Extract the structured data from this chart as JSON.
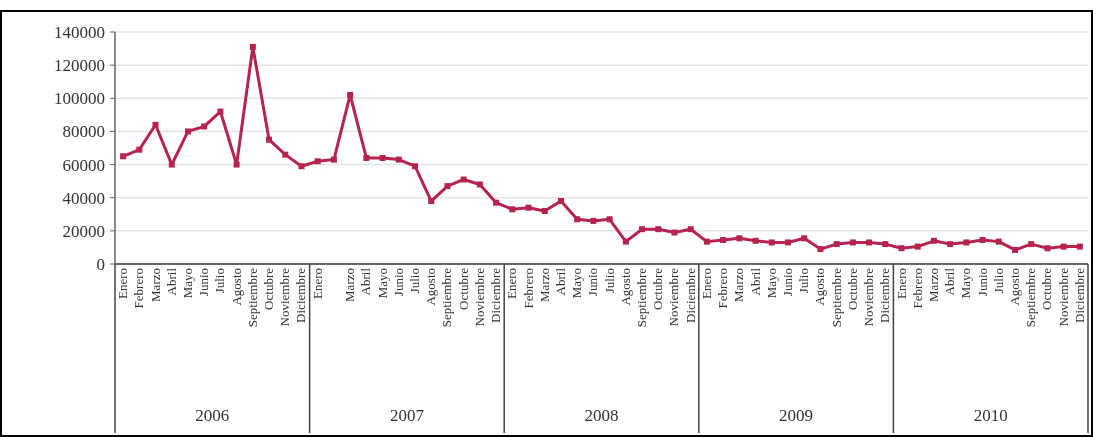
{
  "chart_data": {
    "type": "line",
    "categories": [
      "Enero",
      "Febrero",
      "Marzo",
      "Abril",
      "Mayo",
      "Junio",
      "Julio",
      "Agosto",
      "Septiembre",
      "Octubre",
      "Noviembre",
      "Diciembre",
      "Enero",
      null,
      "Marzo",
      "Abril",
      "Mayo",
      "Junio",
      "Julio",
      "Agosto",
      "Septiembre",
      "Octubre",
      "Noviembre",
      "Diciembre",
      "Enero",
      "Febrero",
      "Marzo",
      "Abril",
      "Mayo",
      "Junio",
      "Julio",
      "Agosto",
      "Septiembre",
      "Octubre",
      "Noviembre",
      "Diciembre",
      "Enero",
      "Febrero",
      "Marzo",
      "Abril",
      "Mayo",
      "Junio",
      "Julio",
      "Agosto",
      "Septiembre",
      "Octubre",
      "Noviembre",
      "Diciembre",
      "Enero",
      "Febrero",
      "Marzo",
      "Abril",
      "Mayo",
      "Junio",
      "Julio",
      "Agosto",
      "Septiembre",
      "Octubre",
      "Noviembre",
      "Diciembre"
    ],
    "series": [
      {
        "color": "#b5234f",
        "values": [
          65000,
          69000,
          84000,
          60000,
          80000,
          83000,
          92000,
          60000,
          131000,
          75000,
          66000,
          59000,
          62000,
          63000,
          102000,
          64000,
          64000,
          63000,
          59000,
          38000,
          47000,
          51000,
          48000,
          37000,
          33000,
          34000,
          32000,
          38000,
          27000,
          26000,
          27000,
          13500,
          21000,
          21000,
          19000,
          21000,
          13500,
          14500,
          15500,
          14000,
          13000,
          13000,
          15500,
          9000,
          12000,
          13000,
          13000,
          12000,
          9500,
          10500,
          14000,
          12000,
          13000,
          14500,
          13500,
          8500,
          12000,
          9500,
          10500,
          10500
        ]
      }
    ],
    "annotations": [
      "2006",
      "2007",
      "2008",
      "2009",
      "2010"
    ],
    "ylim": [
      0,
      140000
    ],
    "yticks": [
      0,
      20000,
      40000,
      60000,
      80000,
      100000,
      120000,
      140000
    ],
    "grid": "y",
    "marker": "square",
    "line_style": "solid"
  }
}
